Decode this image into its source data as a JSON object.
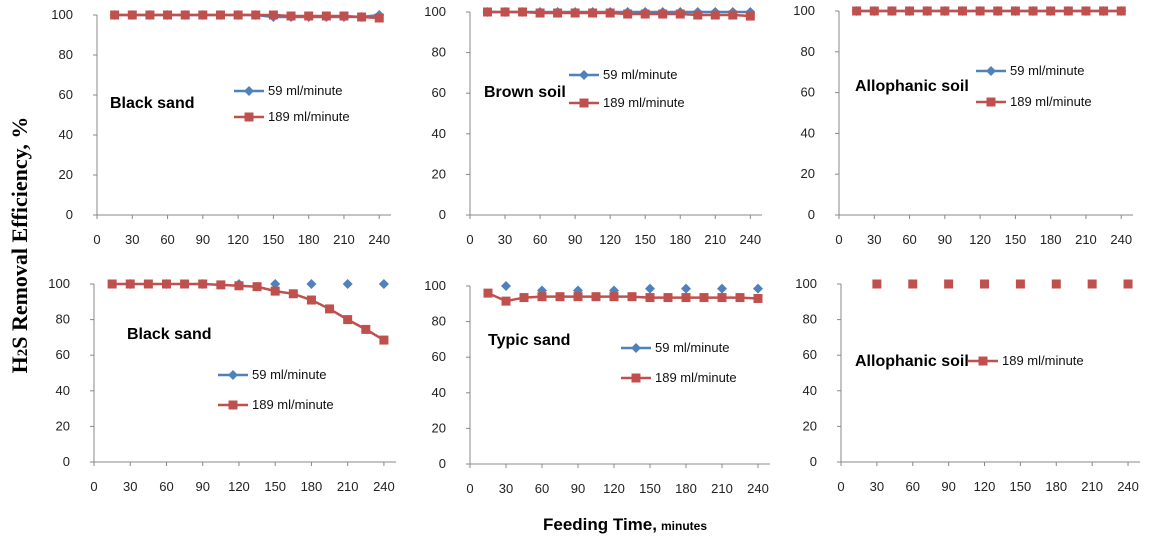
{
  "figure": {
    "ylabel_main": "H",
    "ylabel_sub": "2",
    "ylabel_rest": "S Removal Efficiency, %",
    "xlabel_main": "Feeding Time,",
    "xlabel_unit": "minutes"
  },
  "colors": {
    "series_59": "#4F81BD",
    "series_189": "#C0504D"
  },
  "chart_data": [
    {
      "type": "line",
      "title": "Black sand",
      "ylim": [
        0,
        100
      ],
      "yticks": [
        0,
        20,
        40,
        60,
        80,
        100
      ],
      "xticks": [
        0,
        30,
        60,
        90,
        120,
        150,
        180,
        210,
        240
      ],
      "legend": "upper-right",
      "series": [
        {
          "name": "59 ml/minute",
          "line": true,
          "x": [
            15,
            30,
            45,
            60,
            75,
            90,
            105,
            120,
            135,
            150,
            165,
            180,
            195,
            210,
            225,
            240
          ],
          "y": [
            100,
            100,
            100,
            100,
            100,
            100,
            100,
            100,
            100,
            99,
            99,
            99,
            99,
            99,
            99,
            100
          ]
        },
        {
          "name": "189 ml/minute",
          "line": true,
          "x": [
            15,
            30,
            45,
            60,
            75,
            90,
            105,
            120,
            135,
            150,
            165,
            180,
            195,
            210,
            225,
            240
          ],
          "y": [
            100,
            100,
            100,
            100,
            100,
            100,
            100,
            100,
            100,
            100,
            99.5,
            99.5,
            99.5,
            99.5,
            99,
            98.5
          ]
        }
      ]
    },
    {
      "type": "line",
      "title": "Brown soil",
      "ylim": [
        0,
        100
      ],
      "yticks": [
        0,
        20,
        40,
        60,
        80,
        100
      ],
      "xticks": [
        0,
        30,
        60,
        90,
        120,
        150,
        180,
        210,
        240
      ],
      "legend": "upper-right",
      "series": [
        {
          "name": "59 ml/minute",
          "line": true,
          "x": [
            15,
            30,
            45,
            60,
            75,
            90,
            105,
            120,
            135,
            150,
            165,
            180,
            195,
            210,
            225,
            240
          ],
          "y": [
            100,
            100,
            100,
            100,
            100,
            100,
            100,
            100,
            100,
            100,
            100,
            100,
            100,
            100,
            100,
            100
          ]
        },
        {
          "name": "189 ml/minute",
          "line": true,
          "x": [
            15,
            30,
            45,
            60,
            75,
            90,
            105,
            120,
            135,
            150,
            165,
            180,
            195,
            210,
            225,
            240
          ],
          "y": [
            100,
            100,
            100,
            99.5,
            99.5,
            99.5,
            99.5,
            99.5,
            99,
            99,
            99,
            99,
            98.5,
            98.5,
            98.5,
            98
          ]
        }
      ]
    },
    {
      "type": "line",
      "title": "Allophanic soil",
      "ylim": [
        0,
        100
      ],
      "yticks": [
        0,
        20,
        40,
        60,
        80,
        100
      ],
      "xticks": [
        0,
        30,
        60,
        90,
        120,
        150,
        180,
        210,
        240
      ],
      "legend": "upper-right",
      "series": [
        {
          "name": "59 ml/minute",
          "line": true,
          "x": [
            15,
            30,
            45,
            60,
            75,
            90,
            105,
            120,
            135,
            150,
            165,
            180,
            195,
            210,
            225,
            240
          ],
          "y": [
            100,
            100,
            100,
            100,
            100,
            100,
            100,
            100,
            100,
            100,
            100,
            100,
            100,
            100,
            100,
            100
          ]
        },
        {
          "name": "189 ml/minute",
          "line": true,
          "x": [
            15,
            30,
            45,
            60,
            75,
            90,
            105,
            120,
            135,
            150,
            165,
            180,
            195,
            210,
            225,
            240
          ],
          "y": [
            100,
            100,
            100,
            100,
            100,
            100,
            100,
            100,
            100,
            100,
            100,
            100,
            100,
            100,
            100,
            100
          ]
        }
      ]
    },
    {
      "type": "line",
      "title": "Black sand",
      "ylim": [
        0,
        100
      ],
      "yticks": [
        0,
        20,
        40,
        60,
        80,
        100
      ],
      "xticks": [
        0,
        30,
        60,
        90,
        120,
        150,
        180,
        210,
        240
      ],
      "legend": "lower-right",
      "series": [
        {
          "name": "59 ml/minute",
          "line": false,
          "x": [
            30,
            60,
            90,
            120,
            150,
            180,
            210,
            240
          ],
          "y": [
            100,
            100,
            100,
            100,
            100,
            100,
            100,
            100
          ]
        },
        {
          "name": "189 ml/minute",
          "line": true,
          "x": [
            15,
            30,
            45,
            60,
            75,
            90,
            105,
            120,
            135,
            150,
            165,
            180,
            195,
            210,
            225,
            240
          ],
          "y": [
            100,
            100,
            100,
            100,
            100,
            100,
            99.5,
            99,
            98.5,
            96,
            94.5,
            91,
            86,
            80,
            74.5,
            68.5
          ]
        }
      ]
    },
    {
      "type": "line",
      "title": "Typic sand",
      "ylim": [
        0,
        100
      ],
      "yticks": [
        0,
        20,
        40,
        60,
        80,
        100
      ],
      "xticks": [
        0,
        30,
        60,
        90,
        120,
        150,
        180,
        210,
        240
      ],
      "legend": "upper-right",
      "series": [
        {
          "name": "59 ml/minute",
          "line": false,
          "x": [
            30,
            60,
            90,
            120,
            150,
            180,
            210,
            240
          ],
          "y": [
            100,
            97.5,
            97.5,
            97.5,
            98.5,
            98.5,
            98.5,
            98.5
          ]
        },
        {
          "name": "189 ml/minute",
          "line": true,
          "x": [
            15,
            30,
            45,
            60,
            75,
            90,
            105,
            120,
            135,
            150,
            165,
            180,
            195,
            210,
            225,
            240
          ],
          "y": [
            96,
            91.5,
            93.5,
            94,
            94,
            94,
            94,
            94,
            94,
            93.5,
            93.5,
            93.5,
            93.5,
            93.5,
            93.5,
            93
          ]
        }
      ]
    },
    {
      "type": "line",
      "title": "Allophanic soil",
      "ylim": [
        0,
        100
      ],
      "yticks": [
        0,
        20,
        40,
        60,
        80,
        100
      ],
      "xticks": [
        0,
        30,
        60,
        90,
        120,
        150,
        180,
        210,
        240
      ],
      "legend": "middle-right",
      "series": [
        {
          "name": "189 ml/minute",
          "line": false,
          "x": [
            30,
            60,
            90,
            120,
            150,
            180,
            210,
            240
          ],
          "y": [
            100,
            100,
            100,
            100,
            100,
            100,
            100,
            100
          ]
        }
      ]
    }
  ]
}
